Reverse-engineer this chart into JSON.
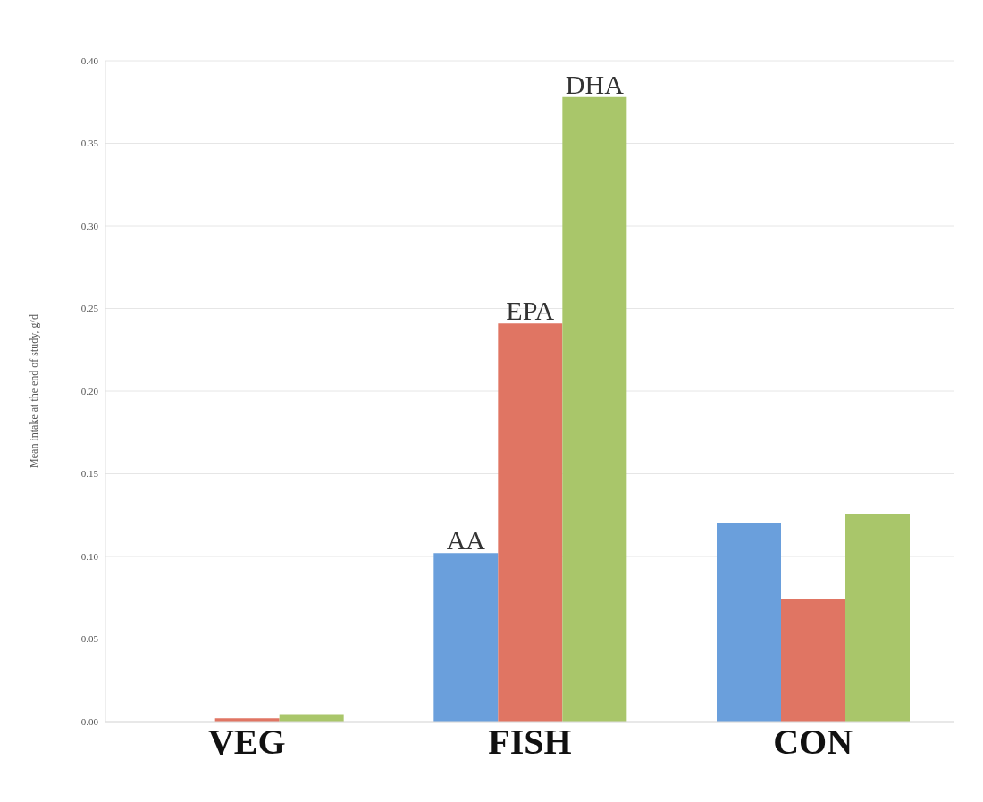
{
  "chart_data": {
    "type": "bar",
    "ylabel": "Mean intake at the end of study, g/d",
    "categories": [
      "VEG",
      "FISH",
      "CON"
    ],
    "series": [
      {
        "name": "AA",
        "color": "#6a9fdc",
        "values": [
          0,
          0.102,
          0.12
        ]
      },
      {
        "name": "EPA",
        "color": "#e07563",
        "values": [
          0.002,
          0.241,
          0.074
        ]
      },
      {
        "name": "DHA",
        "color": "#a9c66a",
        "values": [
          0.004,
          0.378,
          0.126
        ]
      }
    ],
    "ylim": [
      0,
      0.4
    ],
    "yticks": [
      {
        "value": 0,
        "label": "0.00"
      },
      {
        "value": 0.05,
        "label": "0.05"
      },
      {
        "value": 0.1,
        "label": "0.10"
      },
      {
        "value": 0.15,
        "label": "0.15"
      },
      {
        "value": 0.2,
        "label": "0.20"
      },
      {
        "value": 0.25,
        "label": "0.25"
      },
      {
        "value": 0.3,
        "label": "0.30"
      },
      {
        "value": 0.35,
        "label": "0.35"
      },
      {
        "value": 0.4,
        "label": "0.40"
      }
    ],
    "grid": "y",
    "legend": false
  }
}
